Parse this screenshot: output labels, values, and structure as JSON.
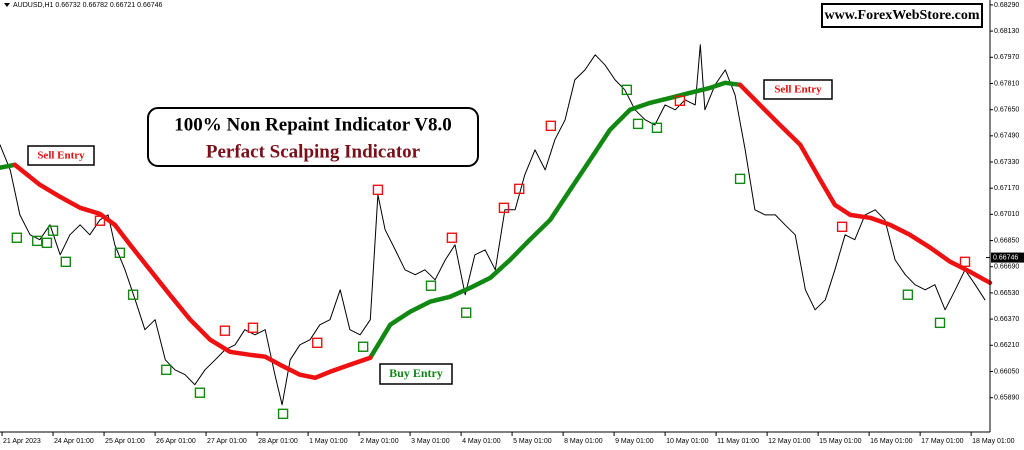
{
  "chart_data": {
    "type": "line",
    "title": "AUDUSD,H1  0.66732 0.66782 0.66721 0.66746",
    "annotations": [
      "www.ForexWebStore.com",
      "100% Non Repaint Indicator V8.0",
      "Perfact Scalping Indicator",
      "Sell Entry",
      "Sell Entry",
      "Buy Entry"
    ],
    "xlim": [
      -0.04,
      19.37
    ],
    "ylim": [
      0.6568,
      0.6832
    ],
    "xticks": [
      {
        "value": 0,
        "label": "21 Apr 2023"
      },
      {
        "value": 1,
        "label": "24 Apr 01:00"
      },
      {
        "value": 2,
        "label": "25 Apr 01:00"
      },
      {
        "value": 3,
        "label": "26 Apr 01:00"
      },
      {
        "value": 4,
        "label": "27 Apr 01:00"
      },
      {
        "value": 5,
        "label": "28 Apr 01:00"
      },
      {
        "value": 6,
        "label": "1 May 01:00"
      },
      {
        "value": 7,
        "label": "2 May 01:00"
      },
      {
        "value": 8,
        "label": "3 May 01:00"
      },
      {
        "value": 9,
        "label": "4 May 01:00"
      },
      {
        "value": 10,
        "label": "5 May 01:00"
      },
      {
        "value": 11,
        "label": "8 May 01:00"
      },
      {
        "value": 12,
        "label": "9 May 01:00"
      },
      {
        "value": 13,
        "label": "10 May 01:00"
      },
      {
        "value": 14,
        "label": "11 May 01:00"
      },
      {
        "value": 15,
        "label": "12 May 01:00"
      },
      {
        "value": 16,
        "label": "15 May 01:00"
      },
      {
        "value": 17,
        "label": "16 May 01:00"
      },
      {
        "value": 18,
        "label": "17 May 01:00"
      },
      {
        "value": 19,
        "label": "18 May 01:00"
      }
    ],
    "yticks": [
      {
        "value": 0.6829,
        "label": "0.68290"
      },
      {
        "value": 0.6813,
        "label": "0.68130"
      },
      {
        "value": 0.6797,
        "label": "0.67970"
      },
      {
        "value": 0.6781,
        "label": "0.67810"
      },
      {
        "value": 0.6765,
        "label": "0.67650"
      },
      {
        "value": 0.6749,
        "label": "0.67490"
      },
      {
        "value": 0.6733,
        "label": "0.67330"
      },
      {
        "value": 0.6717,
        "label": "0.67170"
      },
      {
        "value": 0.6701,
        "label": "0.67010"
      },
      {
        "value": 0.6685,
        "label": "0.66850"
      },
      {
        "value": 0.6669,
        "label": "0.66690"
      },
      {
        "value": 0.6653,
        "label": "0.66530"
      },
      {
        "value": 0.6637,
        "label": "0.66370"
      },
      {
        "value": 0.6621,
        "label": "0.66210"
      },
      {
        "value": 0.6605,
        "label": "0.66050"
      },
      {
        "value": 0.6589,
        "label": "0.65890"
      }
    ],
    "last_price": 0.66746,
    "price": {
      "color": "#000000",
      "x": [
        -0.04,
        0.16,
        0.35,
        0.55,
        0.74,
        0.94,
        1.14,
        1.33,
        1.53,
        1.72,
        1.92,
        2.08,
        2.21,
        2.41,
        2.61,
        2.8,
        3.0,
        3.2,
        3.39,
        3.59,
        3.78,
        3.98,
        4.18,
        4.37,
        4.57,
        4.76,
        4.96,
        5.16,
        5.35,
        5.49,
        5.65,
        5.84,
        6.04,
        6.23,
        6.43,
        6.63,
        6.82,
        7.02,
        7.22,
        7.37,
        7.51,
        7.71,
        7.9,
        8.1,
        8.29,
        8.49,
        8.69,
        8.88,
        9.08,
        9.27,
        9.47,
        9.67,
        9.86,
        10.06,
        10.25,
        10.45,
        10.65,
        10.84,
        11.04,
        11.23,
        11.43,
        11.63,
        11.82,
        12.02,
        12.21,
        12.41,
        12.61,
        12.8,
        13.0,
        13.2,
        13.39,
        13.59,
        13.69,
        13.78,
        13.98,
        14.18,
        14.37,
        14.57,
        14.76,
        14.96,
        15.16,
        15.35,
        15.55,
        15.75,
        15.94,
        16.14,
        16.33,
        16.53,
        16.72,
        16.92,
        17.12,
        17.31,
        17.51,
        17.71,
        17.9,
        18.1,
        18.29,
        18.49,
        18.69,
        18.88,
        19.08,
        19.27
      ],
      "values": [
        0.67435,
        0.67282,
        0.67007,
        0.66885,
        0.66855,
        0.66946,
        0.66763,
        0.66885,
        0.66946,
        0.66885,
        0.66977,
        0.67007,
        0.66824,
        0.66671,
        0.66488,
        0.66305,
        0.66366,
        0.66121,
        0.6606,
        0.6603,
        0.65969,
        0.6606,
        0.66121,
        0.66182,
        0.66213,
        0.66305,
        0.66274,
        0.66305,
        0.6603,
        0.65846,
        0.66121,
        0.66213,
        0.66244,
        0.66335,
        0.66366,
        0.66549,
        0.66305,
        0.66274,
        0.66366,
        0.6713,
        0.66916,
        0.66793,
        0.66671,
        0.66641,
        0.66671,
        0.6661,
        0.66732,
        0.66824,
        0.66519,
        0.66763,
        0.66793,
        0.66671,
        0.67038,
        0.67038,
        0.67252,
        0.67404,
        0.67282,
        0.67466,
        0.67588,
        0.67832,
        0.67893,
        0.67985,
        0.67924,
        0.67832,
        0.67771,
        0.67649,
        0.67588,
        0.67557,
        0.67679,
        0.67649,
        0.6771,
        0.67679,
        0.68046,
        0.67649,
        0.67802,
        0.67893,
        0.67741,
        0.67404,
        0.67038,
        0.67007,
        0.67007,
        0.66946,
        0.66885,
        0.66549,
        0.66427,
        0.66488,
        0.66671,
        0.66885,
        0.66855,
        0.67007,
        0.67038,
        0.66977,
        0.66732,
        0.66641,
        0.6658,
        0.66549,
        0.6658,
        0.66427,
        0.66549,
        0.66671,
        0.6658,
        0.66488
      ]
    },
    "indicator": {
      "x": [
        -0.04,
        0.25,
        0.74,
        1.14,
        1.53,
        1.92,
        2.21,
        2.51,
        2.9,
        3.29,
        3.69,
        4.08,
        4.47,
        4.86,
        5.16,
        5.45,
        5.84,
        6.14,
        6.43,
        6.82,
        7.22,
        7.61,
        8.0,
        8.39,
        8.78,
        9.18,
        9.57,
        9.96,
        10.35,
        10.75,
        11.14,
        11.53,
        11.92,
        12.31,
        12.71,
        13.1,
        13.49,
        13.88,
        14.18,
        14.47,
        14.86,
        15.25,
        15.65,
        16.04,
        16.33,
        16.63,
        17.02,
        17.41,
        17.8,
        18.2,
        18.59,
        18.98,
        19.37
      ],
      "series": [
        {
          "color": "#118811",
          "values": [
            0.67295,
            0.67313,
            null,
            null,
            null,
            null,
            null,
            null,
            null,
            null,
            null,
            null,
            null,
            null,
            null,
            null,
            null,
            null,
            null,
            null,
            0.66134,
            0.66335,
            0.66415,
            0.66476,
            0.66506,
            0.66561,
            0.66622,
            0.66732,
            0.66855,
            0.66977,
            0.6716,
            0.67343,
            0.67527,
            0.67649,
            0.67692,
            0.67722,
            0.67753,
            0.67783,
            0.67814,
            0.67802,
            null,
            null,
            null,
            null,
            null,
            null,
            null,
            null,
            null,
            null,
            null,
            null,
            null
          ]
        },
        {
          "color": "#ee1111",
          "values": [
            null,
            0.67313,
            0.67191,
            0.67117,
            0.6705,
            0.67013,
            0.66946,
            0.66824,
            0.66671,
            0.66519,
            0.66366,
            0.66244,
            0.6617,
            0.66152,
            0.6614,
            0.66091,
            0.6603,
            0.66011,
            0.66048,
            0.66091,
            0.66134,
            null,
            null,
            null,
            null,
            null,
            null,
            null,
            null,
            null,
            null,
            null,
            null,
            null,
            null,
            null,
            null,
            null,
            null,
            0.67802,
            0.67679,
            0.67557,
            0.67435,
            0.67221,
            0.67068,
            0.67007,
            0.66989,
            0.66946,
            0.66885,
            0.66806,
            0.6672,
            0.66659,
            0.66592
          ]
        }
      ]
    },
    "sell_signals": {
      "color": "#ee1111",
      "x": [
        1.92,
        4.37,
        4.92,
        6.18,
        7.37,
        8.82,
        9.84,
        10.14,
        10.76,
        13.29,
        16.47,
        18.88
      ],
      "values": [
        0.66971,
        0.66299,
        0.66317,
        0.66225,
        0.6716,
        0.66867,
        0.6705,
        0.67166,
        0.67551,
        0.67704,
        0.66934,
        0.6672
      ]
    },
    "buy_signals": {
      "color": "#118811",
      "x": [
        0.29,
        0.69,
        0.88,
        1.0,
        1.25,
        2.31,
        2.57,
        3.22,
        3.88,
        5.51,
        7.08,
        8.41,
        9.1,
        12.25,
        12.47,
        12.84,
        14.47,
        17.76,
        18.39
      ],
      "values": [
        0.66867,
        0.66848,
        0.66836,
        0.6691,
        0.6672,
        0.66775,
        0.66519,
        0.6606,
        0.6592,
        0.65791,
        0.66201,
        0.66574,
        0.66409,
        0.67771,
        0.67563,
        0.67539,
        0.67227,
        0.66519,
        0.66347
      ]
    }
  }
}
